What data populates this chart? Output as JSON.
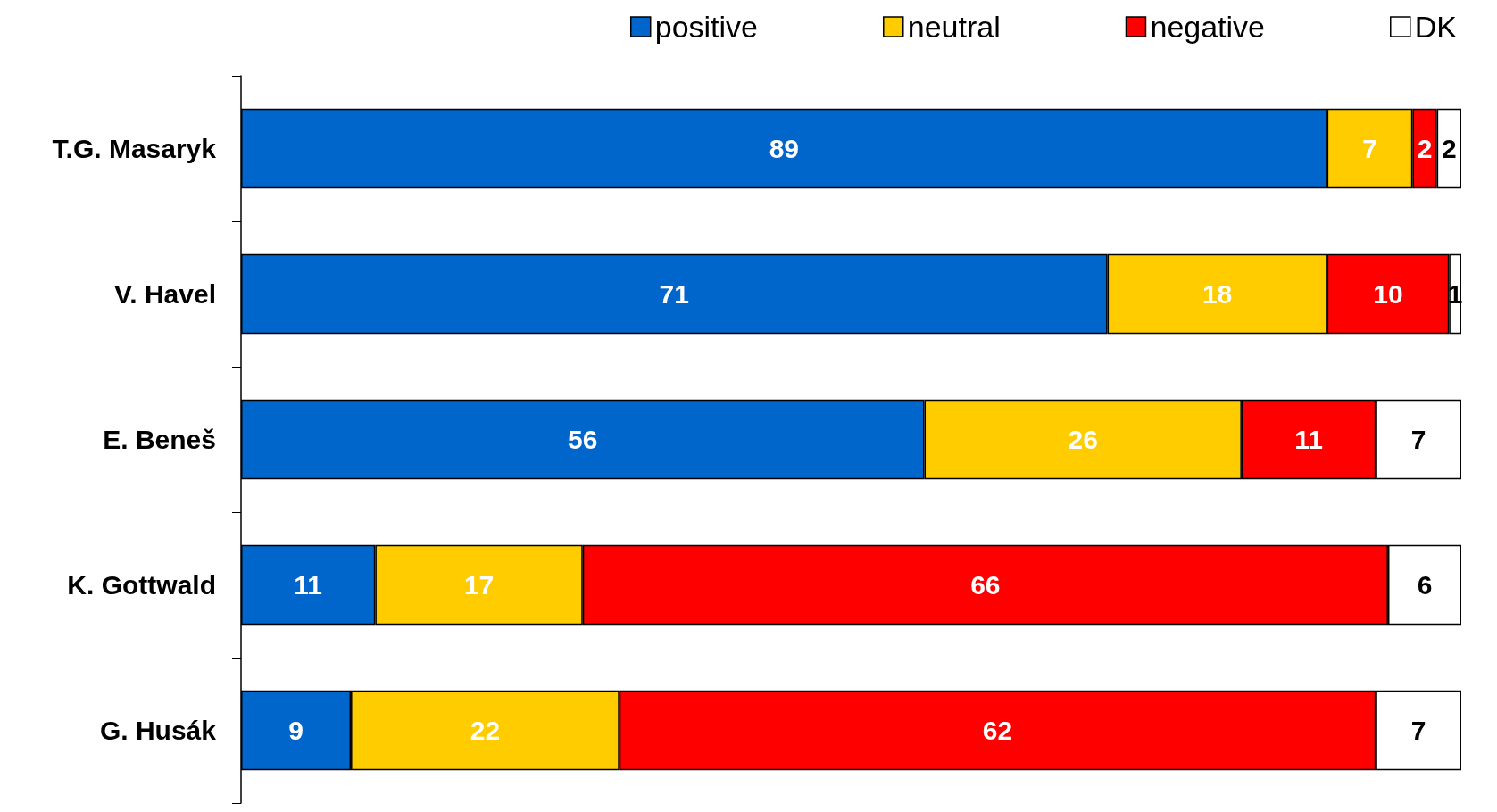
{
  "chart_data": {
    "type": "bar",
    "orientation": "horizontal",
    "stacked": true,
    "data_labels": true,
    "legend": "top right",
    "grid": false,
    "categories": [
      "T.G. Masaryk",
      "V. Havel",
      "E. Beneš",
      "K. Gottwald",
      "G. Husák"
    ],
    "series": [
      {
        "name": "positive",
        "color": "#0066cc",
        "values": [
          89,
          71,
          56,
          11,
          9
        ]
      },
      {
        "name": "neutral",
        "color": "#ffcc00",
        "values": [
          7,
          18,
          26,
          17,
          22
        ]
      },
      {
        "name": "negative",
        "color": "#ff0000",
        "values": [
          2,
          10,
          11,
          66,
          62
        ]
      },
      {
        "name": "DK",
        "color": "#ffffff",
        "values": [
          2,
          1,
          7,
          6,
          7
        ]
      }
    ]
  }
}
